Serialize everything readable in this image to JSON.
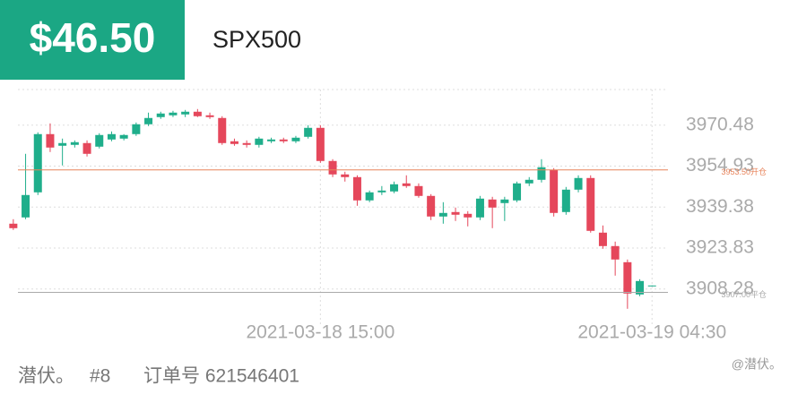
{
  "header": {
    "price": "$46.50",
    "symbol": "SPX500"
  },
  "chart_data": {
    "type": "candlestick",
    "categories": [
      null,
      null,
      null,
      null,
      null,
      null,
      null,
      null,
      null,
      null,
      null,
      null,
      null,
      null,
      null,
      null,
      null,
      null,
      null,
      null,
      null,
      null,
      null,
      null,
      null,
      "2021-03-18 15:00",
      null,
      null,
      null,
      null,
      null,
      null,
      null,
      null,
      null,
      null,
      null,
      null,
      null,
      null,
      null,
      null,
      null,
      null,
      null,
      null,
      null,
      null,
      null,
      null,
      null,
      null,
      "2021-03-19 04:30"
    ],
    "open": [
      3933.08,
      3935.46,
      3944.98,
      3967.08,
      3962.66,
      3963.0,
      3963.68,
      3962.32,
      3965.04,
      3965.38,
      3967.08,
      3970.82,
      3973.54,
      3974.22,
      3974.56,
      3975.58,
      3974.22,
      3973.2,
      3964.36,
      3963.68,
      3963.0,
      3964.36,
      3965.04,
      3964.36,
      3966.06,
      3969.46,
      3956.88,
      3951.78,
      3950.76,
      3941.92,
      3944.98,
      3945.32,
      3948.38,
      3947.36,
      3943.62,
      3935.8,
      3937.5,
      3936.82,
      3935.46,
      3942.26,
      3940.9,
      3941.92,
      3948.38,
      3949.74,
      3953.48,
      3937.5,
      3946.0,
      3950.42,
      3929.68,
      3924.58,
      3918.46,
      3906.22,
      3909.28
    ],
    "high": [
      3934.78,
      3959.6,
      3967.76,
      3971.16,
      3965.38,
      3964.7,
      3964.7,
      3967.42,
      3968.1,
      3967.08,
      3971.5,
      3975.24,
      3975.58,
      3975.92,
      3976.26,
      3976.6,
      3975.24,
      3973.88,
      3965.38,
      3964.7,
      3966.06,
      3965.72,
      3965.72,
      3966.4,
      3970.48,
      3970.48,
      3957.56,
      3952.8,
      3951.44,
      3945.66,
      3947.36,
      3949.06,
      3951.44,
      3948.38,
      3944.3,
      3941.24,
      3939.2,
      3937.84,
      3943.62,
      3943.28,
      3943.28,
      3949.06,
      3950.76,
      3957.56,
      3954.16,
      3947.02,
      3951.44,
      3951.44,
      3932.4,
      3926.28,
      3919.48,
      3912.0,
      3909.62
    ],
    "low": [
      3930.7,
      3934.78,
      3943.96,
      3960.28,
      3955.18,
      3961.98,
      3958.58,
      3961.64,
      3964.36,
      3964.7,
      3966.4,
      3970.14,
      3972.86,
      3973.54,
      3973.54,
      3973.54,
      3972.86,
      3963.0,
      3962.66,
      3961.98,
      3961.98,
      3963.68,
      3963.68,
      3963.68,
      3965.38,
      3956.2,
      3950.76,
      3949.06,
      3939.88,
      3941.24,
      3943.96,
      3944.64,
      3946.68,
      3942.94,
      3934.44,
      3933.08,
      3934.1,
      3932.06,
      3934.44,
      3931.38,
      3934.1,
      3941.24,
      3947.36,
      3948.72,
      3935.8,
      3936.48,
      3944.98,
      3929.68,
      3923.56,
      3913.36,
      3900.78,
      3905.54,
      3909.28
    ],
    "close": [
      3931.38,
      3943.96,
      3967.08,
      3961.98,
      3963.68,
      3964.02,
      3959.6,
      3966.74,
      3967.08,
      3966.74,
      3970.82,
      3973.2,
      3974.9,
      3975.24,
      3975.58,
      3973.88,
      3973.54,
      3963.68,
      3963.34,
      3963.0,
      3965.38,
      3965.04,
      3964.36,
      3965.72,
      3969.46,
      3956.88,
      3951.78,
      3950.76,
      3941.92,
      3944.98,
      3945.66,
      3948.04,
      3947.36,
      3943.62,
      3935.8,
      3937.16,
      3936.48,
      3935.46,
      3942.6,
      3939.2,
      3942.26,
      3948.38,
      3949.74,
      3954.5,
      3937.16,
      3946.0,
      3950.42,
      3930.36,
      3924.58,
      3919.48,
      3906.56,
      3911.32,
      3909.62
    ],
    "up_color": "#1fae8b",
    "down_color": "#e5475b",
    "ylim": [
      3898,
      3984
    ],
    "yticks": [
      3970.48,
      3954.93,
      3939.38,
      3923.83,
      3908.28
    ],
    "grid": true,
    "reference_lines": [
      {
        "value": 3953.5,
        "label": "3953.50开仓",
        "color": "#e8835a"
      },
      {
        "value": 3907,
        "label": "3907.00平仓",
        "color": "#aaaaaa"
      }
    ]
  },
  "footer": {
    "user": "潜伏。",
    "rank": "#8",
    "order": "订单号 621546401",
    "watermark": "@潜伏。"
  }
}
